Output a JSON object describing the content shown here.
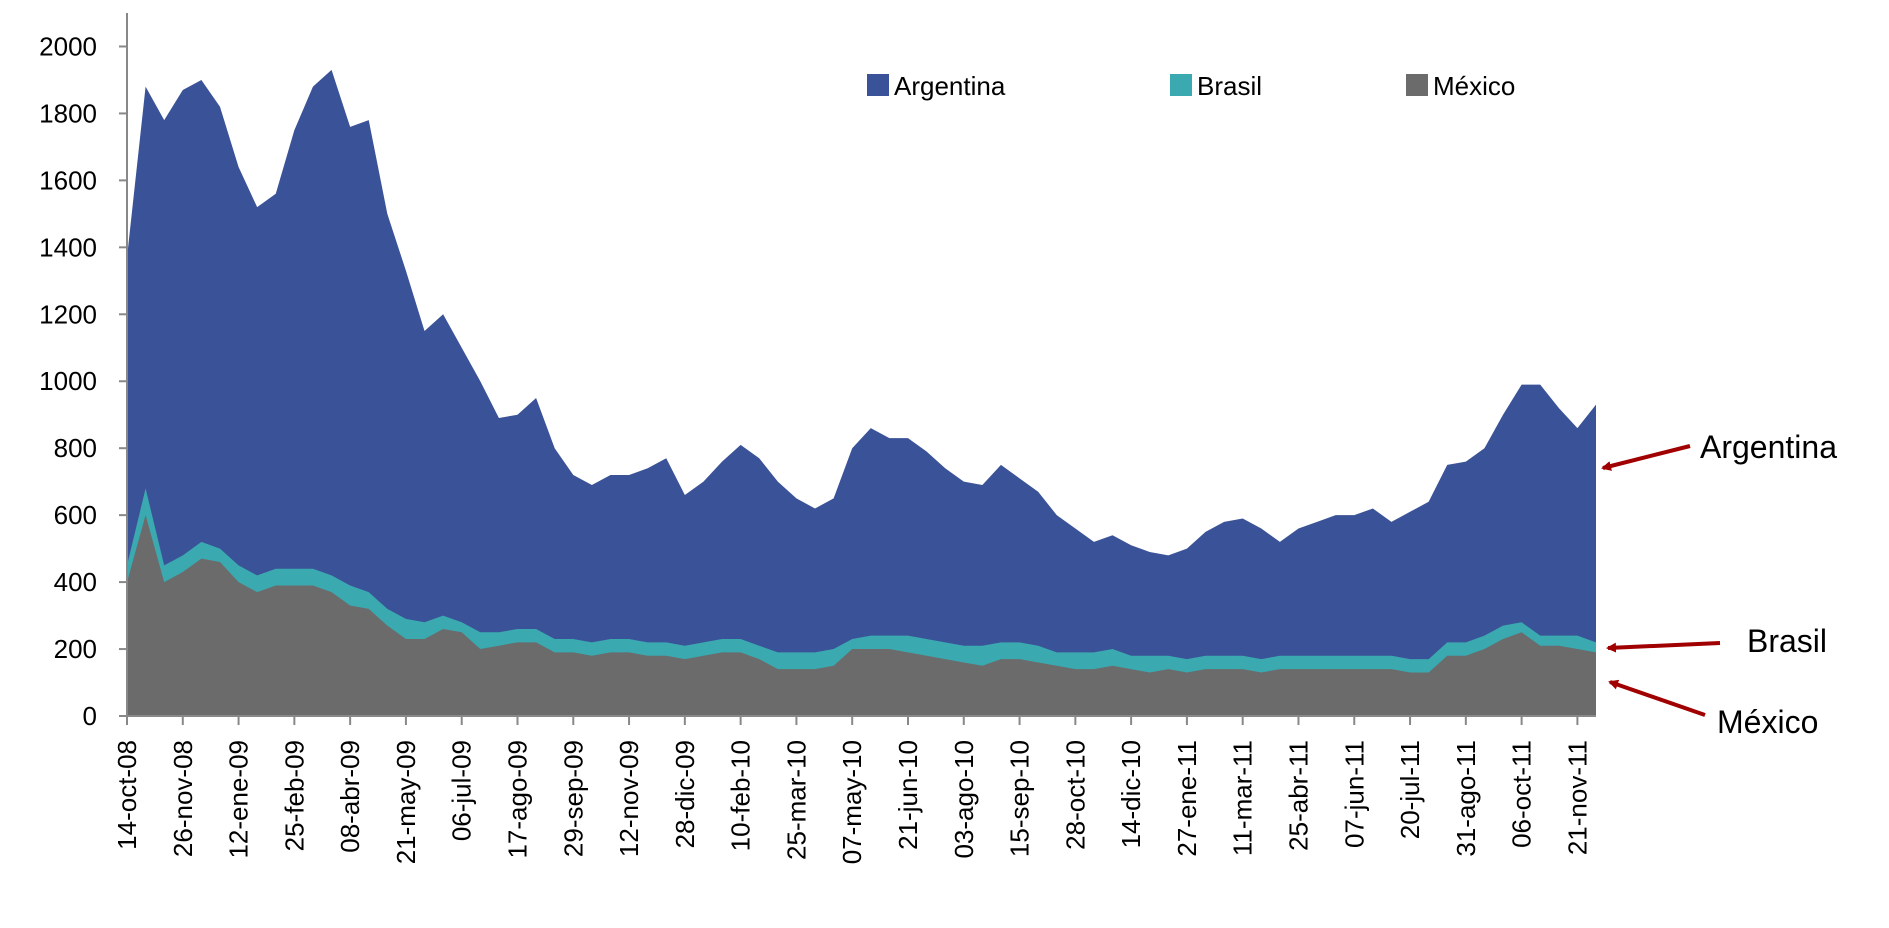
{
  "chart_data": {
    "type": "area",
    "categories": [
      "14-oct-08",
      null,
      null,
      "26-nov-08",
      null,
      null,
      "12-ene-09",
      null,
      null,
      "25-feb-09",
      null,
      null,
      "08-abr-09",
      null,
      null,
      "21-may-09",
      null,
      null,
      "06-jul-09",
      null,
      null,
      "17-ago-09",
      null,
      null,
      "29-sep-09",
      null,
      null,
      "12-nov-09",
      null,
      null,
      "28-dic-09",
      null,
      null,
      "10-feb-10",
      null,
      null,
      "25-mar-10",
      null,
      null,
      "07-may-10",
      null,
      null,
      "21-jun-10",
      null,
      null,
      "03-ago-10",
      null,
      null,
      "15-sep-10",
      null,
      null,
      "28-oct-10",
      null,
      null,
      "14-dic-10",
      null,
      null,
      "27-ene-11",
      null,
      null,
      "11-mar-11",
      null,
      null,
      "25-abr-11",
      null,
      null,
      "07-jun-11",
      null,
      null,
      "20-jul-11",
      null,
      null,
      "31-ago-11",
      null,
      null,
      "06-oct-11",
      null,
      null,
      "21-nov-11",
      null
    ],
    "series": [
      {
        "name": "Argentina",
        "color": "#3a5297",
        "values": [
          1370,
          1880,
          1780,
          1870,
          1900,
          1820,
          1640,
          1520,
          1560,
          1750,
          1880,
          1930,
          1760,
          1780,
          1500,
          1330,
          1150,
          1200,
          1100,
          1000,
          890,
          900,
          950,
          800,
          720,
          690,
          720,
          720,
          740,
          770,
          660,
          700,
          760,
          810,
          770,
          700,
          650,
          620,
          650,
          800,
          860,
          830,
          830,
          790,
          740,
          700,
          690,
          750,
          710,
          670,
          600,
          560,
          520,
          540,
          510,
          490,
          480,
          500,
          550,
          580,
          590,
          560,
          520,
          560,
          580,
          600,
          600,
          620,
          580,
          610,
          640,
          750,
          760,
          800,
          900,
          990,
          990,
          920,
          860,
          930
        ]
      },
      {
        "name": "Brasil",
        "color": "#3aa9b0",
        "values": [
          450,
          680,
          450,
          480,
          520,
          500,
          450,
          420,
          440,
          440,
          440,
          420,
          390,
          370,
          320,
          290,
          280,
          300,
          280,
          250,
          250,
          260,
          260,
          230,
          230,
          220,
          230,
          230,
          220,
          220,
          210,
          220,
          230,
          230,
          210,
          190,
          190,
          190,
          200,
          230,
          240,
          240,
          240,
          230,
          220,
          210,
          210,
          220,
          220,
          210,
          190,
          190,
          190,
          200,
          180,
          180,
          180,
          170,
          180,
          180,
          180,
          170,
          180,
          180,
          180,
          180,
          180,
          180,
          180,
          170,
          170,
          220,
          220,
          240,
          270,
          280,
          240,
          240,
          240,
          220
        ]
      },
      {
        "name": "México",
        "color": "#6b6b6b",
        "values": [
          400,
          600,
          400,
          430,
          470,
          460,
          400,
          370,
          390,
          390,
          390,
          370,
          330,
          320,
          270,
          230,
          230,
          260,
          250,
          200,
          210,
          220,
          220,
          190,
          190,
          180,
          190,
          190,
          180,
          180,
          170,
          180,
          190,
          190,
          170,
          140,
          140,
          140,
          150,
          200,
          200,
          200,
          190,
          180,
          170,
          160,
          150,
          170,
          170,
          160,
          150,
          140,
          140,
          150,
          140,
          130,
          140,
          130,
          140,
          140,
          140,
          130,
          140,
          140,
          140,
          140,
          140,
          140,
          140,
          130,
          130,
          180,
          180,
          200,
          230,
          250,
          210,
          210,
          200,
          190
        ]
      }
    ],
    "ylim": [
      0,
      2100
    ],
    "yticks": [
      0,
      200,
      400,
      600,
      800,
      1000,
      1200,
      1400,
      1600,
      1800,
      2000
    ],
    "legend": "top",
    "annotations": [
      "Argentina",
      "Brasil",
      "México"
    ]
  }
}
